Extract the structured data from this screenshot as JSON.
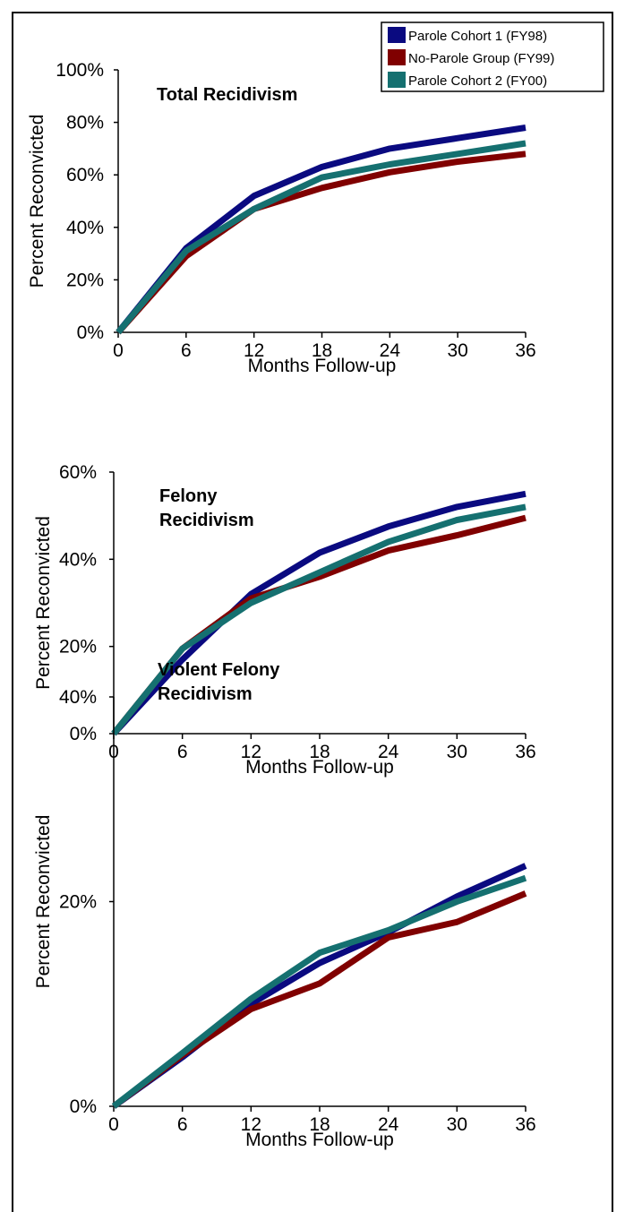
{
  "legend": {
    "entries": [
      {
        "label": "Parole Cohort 1 (FY98)",
        "color": "#0a0a80"
      },
      {
        "label": "No-Parole Group (FY99)",
        "color": "#800000"
      },
      {
        "label": "Parole Cohort 2 (FY00)",
        "color": "#157070"
      }
    ]
  },
  "chart_data": [
    {
      "type": "line",
      "title": "Total Recidivism",
      "xlabel": "Months Follow-up",
      "ylabel": "Percent Reconvicted",
      "x": [
        0,
        6,
        12,
        18,
        24,
        30,
        36
      ],
      "ylim": [
        0,
        100
      ],
      "yticks": [
        "0%",
        "20%",
        "40%",
        "60%",
        "80%",
        "100%"
      ],
      "series": [
        {
          "name": "Parole Cohort 1 (FY98)",
          "color": "#0a0a80",
          "values": [
            0,
            32,
            52,
            63,
            70,
            74,
            78
          ]
        },
        {
          "name": "No-Parole Group (FY99)",
          "color": "#800000",
          "values": [
            0,
            29,
            47,
            55,
            61,
            65,
            68
          ]
        },
        {
          "name": "Parole Cohort 2 (FY00)",
          "color": "#157070",
          "values": [
            0,
            31,
            47,
            59,
            64,
            68,
            72
          ]
        }
      ]
    },
    {
      "type": "line",
      "title": "Felony Recidivism",
      "title_lines": [
        "Felony",
        "Recidivism"
      ],
      "xlabel": "Months Follow-up",
      "ylabel": "Percent Reconvicted",
      "x": [
        0,
        6,
        12,
        18,
        24,
        30,
        36
      ],
      "ylim": [
        0,
        60
      ],
      "yticks": [
        "0%",
        "20%",
        "40%",
        "60%"
      ],
      "series": [
        {
          "name": "Parole Cohort 1 (FY98)",
          "color": "#0a0a80",
          "values": [
            0,
            17,
            32,
            41.5,
            47.5,
            52,
            55
          ]
        },
        {
          "name": "No-Parole Group (FY99)",
          "color": "#800000",
          "values": [
            0,
            19.5,
            31,
            36,
            42,
            45.5,
            49.5
          ]
        },
        {
          "name": "Parole Cohort 2 (FY00)",
          "color": "#157070",
          "values": [
            0,
            19.5,
            30,
            37,
            44,
            49,
            52
          ]
        }
      ]
    },
    {
      "type": "line",
      "title": "Violent Felony Recidivism",
      "title_lines": [
        "Violent Felony",
        "Recidivism"
      ],
      "xlabel": "Months Follow-up",
      "ylabel": "Percent Reconvicted",
      "x": [
        0,
        6,
        12,
        18,
        24,
        30,
        36
      ],
      "ylim": [
        0,
        40
      ],
      "yticks": [
        "0%",
        "20%",
        "40%"
      ],
      "series": [
        {
          "name": "Parole Cohort 1 (FY98)",
          "color": "#0a0a80",
          "values": [
            0,
            4.8,
            10,
            14,
            17,
            20.5,
            23.5
          ]
        },
        {
          "name": "No-Parole Group (FY99)",
          "color": "#800000",
          "values": [
            0,
            5,
            9.5,
            12,
            16.5,
            18,
            20.8
          ]
        },
        {
          "name": "Parole Cohort 2 (FY00)",
          "color": "#157070",
          "values": [
            0,
            5.2,
            10.5,
            15,
            17.2,
            20,
            22.3
          ]
        }
      ]
    }
  ]
}
